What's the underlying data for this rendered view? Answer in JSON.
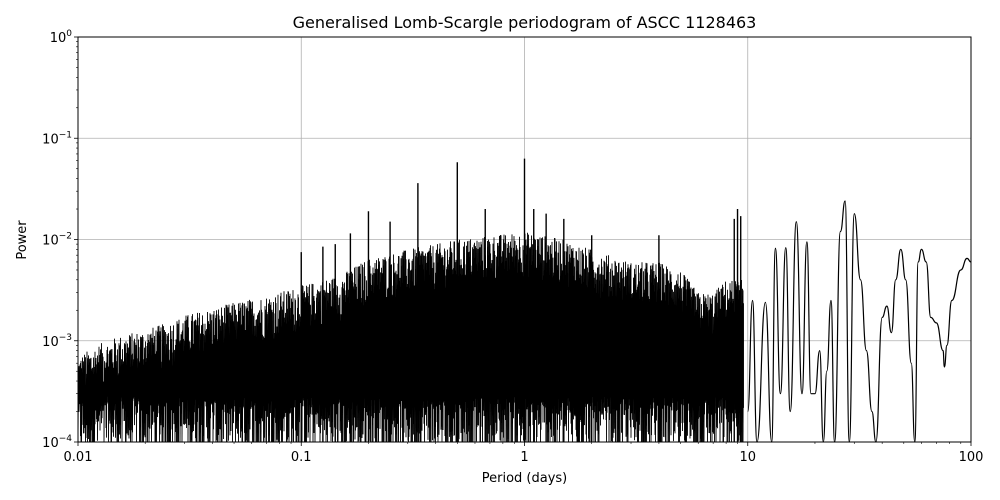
{
  "chart_data": {
    "type": "line",
    "title": "Generalised Lomb-Scargle periodogram of ASCC 1128463",
    "xlabel": "Period (days)",
    "ylabel": "Power",
    "xscale": "log",
    "yscale": "log",
    "xlim": [
      0.01,
      100
    ],
    "ylim": [
      0.0001,
      1
    ],
    "grid": true,
    "line_color": "#000000",
    "grid_color": "#b0b0b0",
    "x_ticks": [
      {
        "value": 0.01,
        "label": "0.01"
      },
      {
        "value": 0.1,
        "label": "0.1"
      },
      {
        "value": 1,
        "label": "1"
      },
      {
        "value": 10,
        "label": "10"
      },
      {
        "value": 100,
        "label": "100"
      }
    ],
    "y_ticks": [
      {
        "value": 0.0001,
        "mantissa": "10",
        "exponent": "−4"
      },
      {
        "value": 0.001,
        "mantissa": "10",
        "exponent": "−3"
      },
      {
        "value": 0.01,
        "mantissa": "10",
        "exponent": "−2"
      },
      {
        "value": 0.1,
        "mantissa": "10",
        "exponent": "−1"
      },
      {
        "value": 1,
        "mantissa": "10",
        "exponent": "0"
      }
    ],
    "series": [
      {
        "values_note_free": true,
        "dense_envelope": [
          [
            0.01,
            0.0007
          ],
          [
            0.012,
            0.0009
          ],
          [
            0.015,
            0.0011
          ],
          [
            0.02,
            0.0013
          ],
          [
            0.025,
            0.0015
          ],
          [
            0.03,
            0.0018
          ],
          [
            0.04,
            0.0021
          ],
          [
            0.05,
            0.0024
          ],
          [
            0.07,
            0.0028
          ],
          [
            0.1,
            0.0035
          ],
          [
            0.15,
            0.0045
          ],
          [
            0.2,
            0.0065
          ],
          [
            0.3,
            0.008
          ],
          [
            0.4,
            0.009
          ],
          [
            0.5,
            0.01
          ],
          [
            0.7,
            0.011
          ],
          [
            1.0,
            0.012
          ],
          [
            1.5,
            0.01
          ],
          [
            2.0,
            0.008
          ],
          [
            3.0,
            0.006
          ],
          [
            4.0,
            0.006
          ],
          [
            5.0,
            0.005
          ],
          [
            6.0,
            0.003
          ],
          [
            7.0,
            0.003
          ],
          [
            8.0,
            0.004
          ]
        ],
        "peaks": [
          [
            0.1,
            0.0075
          ],
          [
            0.125,
            0.0085
          ],
          [
            0.142,
            0.009
          ],
          [
            0.166,
            0.0115
          ],
          [
            0.2,
            0.019
          ],
          [
            0.25,
            0.015
          ],
          [
            0.333,
            0.036
          ],
          [
            0.5,
            0.058
          ],
          [
            0.667,
            0.02
          ],
          [
            1.0,
            0.063
          ],
          [
            1.1,
            0.02
          ],
          [
            1.25,
            0.018
          ],
          [
            1.5,
            0.016
          ],
          [
            2.0,
            0.011
          ],
          [
            4.0,
            0.011
          ],
          [
            8.7,
            0.016
          ],
          [
            9.0,
            0.02
          ],
          [
            9.3,
            0.017
          ]
        ],
        "smooth_curve": [
          [
            10,
            0.0002
          ],
          [
            10.5,
            0.0025
          ],
          [
            11,
            0.0001
          ],
          [
            12,
            0.0024
          ],
          [
            12.8,
            0.0001
          ],
          [
            13.3,
            0.0082
          ],
          [
            14,
            0.0003
          ],
          [
            14.8,
            0.0083
          ],
          [
            15.5,
            0.0002
          ],
          [
            16.5,
            0.015
          ],
          [
            17.5,
            0.0003
          ],
          [
            18.4,
            0.0095
          ],
          [
            19.2,
            0.0003
          ],
          [
            20,
            0.0003
          ],
          [
            21,
            0.0008
          ],
          [
            21.8,
            0.0001
          ],
          [
            22.6,
            0.0005
          ],
          [
            23.6,
            0.0025
          ],
          [
            24.5,
            0.0001
          ],
          [
            26,
            0.012
          ],
          [
            27.3,
            0.024
          ],
          [
            28.5,
            0.0001
          ],
          [
            30,
            0.018
          ],
          [
            32,
            0.004
          ],
          [
            34,
            0.0008
          ],
          [
            36,
            0.0002
          ],
          [
            37.5,
            0.0001
          ],
          [
            40,
            0.0017
          ],
          [
            42,
            0.0022
          ],
          [
            44,
            0.0012
          ],
          [
            46,
            0.004
          ],
          [
            48.5,
            0.008
          ],
          [
            51,
            0.004
          ],
          [
            54,
            0.0006
          ],
          [
            56,
            0.0001
          ],
          [
            58,
            0.006
          ],
          [
            60,
            0.008
          ],
          [
            63,
            0.006
          ],
          [
            66,
            0.0017
          ],
          [
            70,
            0.0015
          ],
          [
            75,
            0.0008
          ],
          [
            76,
            0.00055
          ],
          [
            78,
            0.0009
          ],
          [
            82,
            0.0025
          ],
          [
            90,
            0.005
          ],
          [
            96,
            0.0065
          ],
          [
            100,
            0.006
          ]
        ]
      }
    ]
  }
}
